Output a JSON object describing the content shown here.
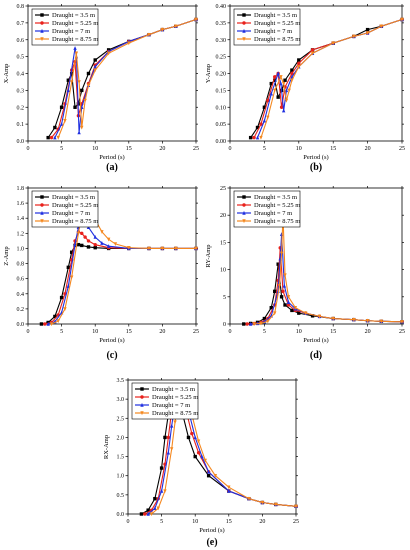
{
  "figure": {
    "panel_labels": [
      "(a)",
      "(b)",
      "(c)",
      "(d)",
      "(e)"
    ]
  },
  "legend": {
    "labels": [
      "Draught = 3.5 m",
      "Draught = 5.25 m",
      "Draught = 7 m",
      "Draught = 8.75 m"
    ]
  },
  "colors": {
    "series": [
      "#000000",
      "#e8211c",
      "#1f2fe0",
      "#f5881f"
    ]
  },
  "markers": [
    "square",
    "circle",
    "triangle-up",
    "triangle-down"
  ],
  "chart_data": [
    {
      "type": "line",
      "xlabel": "Period (s)",
      "ylabel": "X-Amp",
      "xlim": [
        0,
        25
      ],
      "ylim": [
        0,
        0.8
      ],
      "xticks": [
        0,
        5,
        10,
        15,
        20,
        25
      ],
      "yticks": [
        0.0,
        0.1,
        0.2,
        0.3,
        0.4,
        0.5,
        0.6,
        0.7,
        0.8
      ],
      "series": [
        {
          "name": "Draught = 3.5 m",
          "x": [
            3,
            4,
            5,
            6,
            6.5,
            7,
            7.5,
            8,
            9,
            10,
            12,
            15,
            18,
            20,
            22,
            25
          ],
          "y": [
            0.02,
            0.08,
            0.2,
            0.36,
            0.4,
            0.2,
            0.22,
            0.3,
            0.4,
            0.48,
            0.54,
            0.59,
            0.63,
            0.66,
            0.68,
            0.72
          ]
        },
        {
          "name": "Draught = 5.25 m",
          "x": [
            3.5,
            4.5,
            5.5,
            6.5,
            7,
            7.5,
            8,
            9,
            10,
            12,
            15,
            18,
            20,
            22,
            25
          ],
          "y": [
            0.02,
            0.07,
            0.22,
            0.42,
            0.47,
            0.15,
            0.22,
            0.34,
            0.45,
            0.53,
            0.59,
            0.63,
            0.66,
            0.68,
            0.72
          ]
        },
        {
          "name": "Draught = 7 m",
          "x": [
            4,
            5,
            6,
            7,
            7.2,
            7.6,
            8,
            9,
            10,
            12,
            15,
            18,
            20,
            22,
            25
          ],
          "y": [
            0.02,
            0.1,
            0.3,
            0.55,
            0.5,
            0.05,
            0.2,
            0.33,
            0.44,
            0.53,
            0.59,
            0.63,
            0.66,
            0.68,
            0.72
          ]
        },
        {
          "name": "Draught = 8.75 m",
          "x": [
            4.5,
            5.5,
            6.5,
            7.2,
            7.6,
            8,
            8.5,
            9,
            10,
            12,
            15,
            18,
            20,
            22,
            25
          ],
          "y": [
            0.02,
            0.12,
            0.35,
            0.52,
            0.35,
            0.08,
            0.24,
            0.33,
            0.42,
            0.52,
            0.58,
            0.63,
            0.66,
            0.68,
            0.72
          ]
        }
      ]
    },
    {
      "type": "line",
      "xlabel": "Period (s)",
      "ylabel": "Y-Amp",
      "xlim": [
        0,
        25
      ],
      "ylim": [
        0,
        0.4
      ],
      "xticks": [
        0,
        5,
        10,
        15,
        20,
        25
      ],
      "yticks": [
        0.0,
        0.05,
        0.1,
        0.15,
        0.2,
        0.25,
        0.3,
        0.35,
        0.4
      ],
      "series": [
        {
          "name": "Draught = 3.5 m",
          "x": [
            3,
            4,
            5,
            6,
            6.5,
            7,
            7.5,
            8,
            9,
            10,
            12,
            15,
            18,
            20,
            22,
            25
          ],
          "y": [
            0.01,
            0.04,
            0.1,
            0.17,
            0.18,
            0.13,
            0.15,
            0.18,
            0.21,
            0.24,
            0.27,
            0.29,
            0.31,
            0.33,
            0.34,
            0.36
          ]
        },
        {
          "name": "Draught = 5.25 m",
          "x": [
            3.5,
            4.5,
            5.5,
            6.5,
            7,
            7.5,
            8,
            9,
            10,
            12,
            15,
            18,
            20,
            22,
            25
          ],
          "y": [
            0.01,
            0.05,
            0.12,
            0.19,
            0.2,
            0.1,
            0.16,
            0.2,
            0.23,
            0.27,
            0.29,
            0.31,
            0.32,
            0.34,
            0.36
          ]
        },
        {
          "name": "Draught = 7 m",
          "x": [
            4,
            5,
            6,
            7,
            7.4,
            7.8,
            8.2,
            9,
            10,
            12,
            15,
            18,
            20,
            22,
            25
          ],
          "y": [
            0.01,
            0.06,
            0.14,
            0.2,
            0.17,
            0.09,
            0.15,
            0.19,
            0.22,
            0.26,
            0.29,
            0.31,
            0.32,
            0.34,
            0.36
          ]
        },
        {
          "name": "Draught = 8.75 m",
          "x": [
            4.5,
            5.5,
            6.5,
            7.4,
            7.8,
            8.2,
            8.6,
            9,
            10,
            12,
            15,
            18,
            20,
            22,
            25
          ],
          "y": [
            0.01,
            0.07,
            0.15,
            0.19,
            0.17,
            0.12,
            0.15,
            0.18,
            0.22,
            0.26,
            0.29,
            0.31,
            0.32,
            0.34,
            0.36
          ]
        }
      ]
    },
    {
      "type": "line",
      "xlabel": "Period (s)",
      "ylabel": "Z-Amp",
      "xlim": [
        0,
        25
      ],
      "ylim": [
        0,
        1.8
      ],
      "xticks": [
        0,
        5,
        10,
        15,
        20,
        25
      ],
      "yticks": [
        0.0,
        0.2,
        0.4,
        0.6,
        0.8,
        1.0,
        1.2,
        1.4,
        1.6,
        1.8
      ],
      "series": [
        {
          "name": "Draught = 3.5 m",
          "x": [
            2,
            3,
            4,
            5,
            6,
            6.5,
            7,
            7.5,
            8,
            9,
            10,
            12,
            15,
            18,
            20,
            22,
            25
          ],
          "y": [
            0.0,
            0.02,
            0.1,
            0.35,
            0.75,
            0.95,
            1.04,
            1.05,
            1.04,
            1.02,
            1.01,
            1.0,
            1.0,
            1.0,
            1.0,
            1.0,
            1.0
          ]
        },
        {
          "name": "Draught = 5.25 m",
          "x": [
            2.5,
            3.5,
            4.5,
            5.5,
            6.5,
            7,
            7.5,
            8,
            8.5,
            9,
            10,
            12,
            15,
            18,
            20,
            22,
            25
          ],
          "y": [
            0.0,
            0.02,
            0.12,
            0.4,
            0.85,
            1.1,
            1.22,
            1.2,
            1.15,
            1.1,
            1.05,
            1.01,
            1.0,
            1.0,
            1.0,
            1.0,
            1.0
          ]
        },
        {
          "name": "Draught = 7 m",
          "x": [
            3,
            4,
            5,
            6,
            7,
            7.5,
            8,
            8.5,
            9,
            10,
            11,
            12,
            15,
            18,
            20,
            22,
            25
          ],
          "y": [
            0.0,
            0.03,
            0.15,
            0.5,
            1.05,
            1.28,
            1.38,
            1.35,
            1.28,
            1.15,
            1.07,
            1.03,
            1.0,
            1.0,
            1.0,
            1.0,
            1.0
          ]
        },
        {
          "name": "Draught = 8.75 m",
          "x": [
            3.5,
            4.5,
            5.5,
            6.5,
            7.5,
            8,
            8.5,
            9,
            10,
            11,
            12,
            13,
            15,
            18,
            20,
            22,
            25
          ],
          "y": [
            0.0,
            0.04,
            0.2,
            0.62,
            1.2,
            1.45,
            1.54,
            1.52,
            1.38,
            1.22,
            1.12,
            1.06,
            1.01,
            1.0,
            1.0,
            1.0,
            1.0
          ]
        }
      ]
    },
    {
      "type": "line",
      "xlabel": "Period (s)",
      "ylabel": "RY-Amp",
      "xlim": [
        0,
        25
      ],
      "ylim": [
        0,
        25
      ],
      "xticks": [
        0,
        5,
        10,
        15,
        20,
        25
      ],
      "yticks": [
        0,
        5,
        10,
        15,
        20,
        25
      ],
      "series": [
        {
          "name": "Draught = 3.5 m",
          "x": [
            2,
            3,
            4,
            5,
            6,
            6.5,
            7,
            7.5,
            8,
            9,
            10,
            12,
            15,
            18,
            20,
            22,
            25
          ],
          "y": [
            0.0,
            0.1,
            0.3,
            1.0,
            3.0,
            6.0,
            11.0,
            5.0,
            3.5,
            2.5,
            2.0,
            1.5,
            1.0,
            0.8,
            0.6,
            0.5,
            0.4
          ]
        },
        {
          "name": "Draught = 5.25 m",
          "x": [
            2.5,
            3.5,
            4.5,
            5.5,
            6.5,
            7,
            7.3,
            7.7,
            8.5,
            9.5,
            11,
            13,
            15,
            18,
            20,
            22,
            25
          ],
          "y": [
            0.0,
            0.1,
            0.3,
            1.0,
            3.5,
            8.0,
            14.0,
            6.0,
            3.5,
            2.5,
            2.0,
            1.4,
            1.0,
            0.8,
            0.6,
            0.5,
            0.4
          ]
        },
        {
          "name": "Draught = 7 m",
          "x": [
            3,
            4,
            5,
            6,
            7,
            7.3,
            7.5,
            7.9,
            8.5,
            9.5,
            11,
            13,
            15,
            18,
            20,
            22,
            25
          ],
          "y": [
            0.0,
            0.1,
            0.4,
            1.5,
            6.0,
            12.0,
            16.5,
            7.0,
            4.0,
            2.8,
            2.0,
            1.4,
            1.0,
            0.8,
            0.6,
            0.5,
            0.4
          ]
        },
        {
          "name": "Draught = 8.75 m",
          "x": [
            3.5,
            4.5,
            5.5,
            6.5,
            7.2,
            7.5,
            7.7,
            8,
            8.5,
            9.5,
            11,
            13,
            15,
            18,
            20,
            22,
            25
          ],
          "y": [
            0.0,
            0.1,
            0.5,
            2.0,
            7.0,
            13.0,
            20.0,
            9.0,
            5.0,
            3.0,
            2.0,
            1.4,
            1.0,
            0.8,
            0.6,
            0.5,
            0.4
          ]
        }
      ]
    },
    {
      "type": "line",
      "xlabel": "Period (s)",
      "ylabel": "RX-Amp",
      "xlim": [
        0,
        25
      ],
      "ylim": [
        0,
        3.5
      ],
      "xticks": [
        0,
        5,
        10,
        15,
        20,
        25
      ],
      "yticks": [
        0.0,
        0.5,
        1.0,
        1.5,
        2.0,
        2.5,
        3.0,
        3.5
      ],
      "series": [
        {
          "name": "Draught = 3.5 m",
          "x": [
            2,
            3,
            4,
            5,
            5.5,
            6,
            6.5,
            7,
            7.5,
            8,
            9,
            10,
            12,
            15,
            18,
            20,
            22,
            25
          ],
          "y": [
            0.0,
            0.1,
            0.4,
            1.2,
            2.0,
            2.6,
            3.0,
            3.15,
            3.0,
            2.7,
            2.0,
            1.5,
            1.0,
            0.6,
            0.4,
            0.3,
            0.25,
            0.2
          ]
        },
        {
          "name": "Draught = 5.25 m",
          "x": [
            2.5,
            3.5,
            4.5,
            5.5,
            6,
            6.5,
            7,
            7.5,
            8,
            8.5,
            9.5,
            10.5,
            12,
            15,
            18,
            20,
            22,
            25
          ],
          "y": [
            0.0,
            0.1,
            0.4,
            1.3,
            2.0,
            2.7,
            3.1,
            3.25,
            3.1,
            2.8,
            2.1,
            1.6,
            1.1,
            0.6,
            0.4,
            0.3,
            0.25,
            0.2
          ]
        },
        {
          "name": "Draught = 7 m",
          "x": [
            3,
            4,
            5,
            6,
            6.5,
            7,
            7.5,
            8,
            8.5,
            9,
            10,
            11,
            12,
            15,
            18,
            20,
            22,
            25
          ],
          "y": [
            0.0,
            0.15,
            0.6,
            1.6,
            2.3,
            2.9,
            3.2,
            3.25,
            3.0,
            2.7,
            2.0,
            1.5,
            1.1,
            0.6,
            0.4,
            0.3,
            0.25,
            0.2
          ]
        },
        {
          "name": "Draught = 8.75 m",
          "x": [
            3.5,
            4.5,
            5.5,
            6.5,
            7,
            7.5,
            8,
            8.5,
            9,
            9.5,
            10.5,
            11.5,
            13,
            15,
            18,
            20,
            22,
            25
          ],
          "y": [
            0.0,
            0.15,
            0.6,
            1.7,
            2.4,
            3.0,
            3.25,
            3.2,
            2.9,
            2.6,
            1.9,
            1.4,
            1.0,
            0.7,
            0.4,
            0.3,
            0.25,
            0.2
          ]
        }
      ]
    }
  ]
}
